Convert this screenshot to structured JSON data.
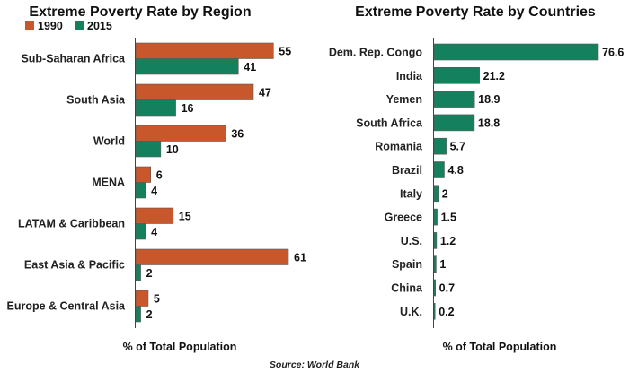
{
  "source": "Source: World Bank",
  "colors": {
    "1990": "#c8582b",
    "2015": "#14805e",
    "bar_edge": "#5a5a5a"
  },
  "chart_data": [
    {
      "type": "bar",
      "orientation": "horizontal",
      "title": "Extreme Poverty Rate by Region",
      "xlabel": "% of Total Population",
      "ylabel": "",
      "xlim": [
        0,
        61
      ],
      "grid": false,
      "legend_position": "top-left",
      "categories": [
        "Sub-Saharan Africa",
        "South Asia",
        "World",
        "MENA",
        "LATAM & Caribbean",
        "East Asia & Pacific",
        "Europe & Central Asia"
      ],
      "series": [
        {
          "name": "1990",
          "color": "#c8582b",
          "values": [
            55,
            47,
            36,
            6,
            15,
            61,
            5
          ]
        },
        {
          "name": "2015",
          "color": "#14805e",
          "values": [
            41,
            16,
            10,
            4,
            4,
            2,
            2
          ]
        }
      ]
    },
    {
      "type": "bar",
      "orientation": "horizontal",
      "title": "Extreme Poverty Rate by Countries",
      "xlabel": "% of Total Population",
      "ylabel": "",
      "xlim": [
        0,
        76.6
      ],
      "grid": false,
      "categories": [
        "Dem. Rep. Congo",
        "India",
        "Yemen",
        "South Africa",
        "Romania",
        "Brazil",
        "Italy",
        "Greece",
        "U.S.",
        "Spain",
        "China",
        "U.K."
      ],
      "series": [
        {
          "color": "#14805e",
          "values": [
            76.6,
            21.2,
            18.9,
            18.8,
            5.7,
            4.8,
            2,
            1.5,
            1.2,
            1,
            0.7,
            0.2
          ]
        }
      ]
    }
  ]
}
